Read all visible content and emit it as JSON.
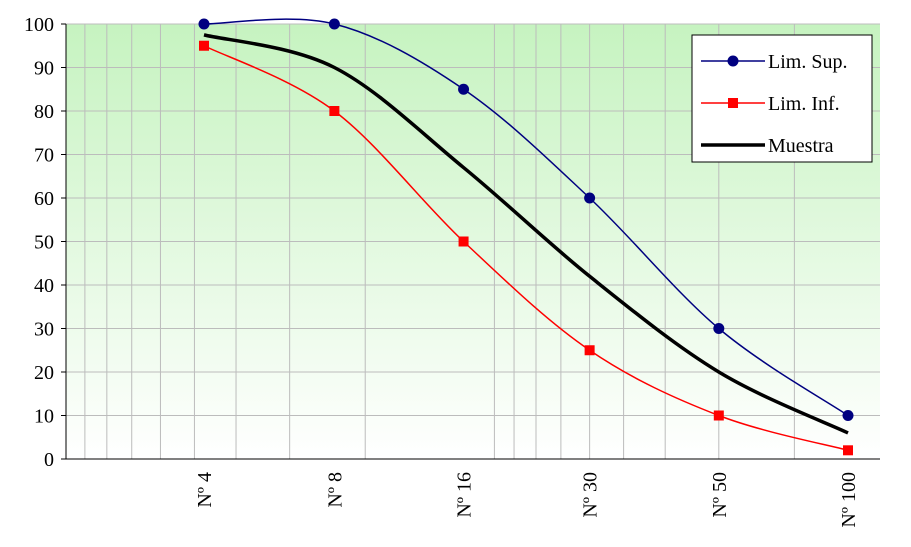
{
  "chart_data": {
    "type": "line",
    "title": "",
    "xlabel": "",
    "ylabel": "",
    "ylim": [
      0,
      100
    ],
    "yticks": [
      0,
      10,
      20,
      30,
      40,
      50,
      60,
      70,
      80,
      90,
      100
    ],
    "x_axis_scale": "log",
    "categories": [
      "Nº 4",
      "Nº 8",
      "Nº 16",
      "Nº 30",
      "Nº 50",
      "Nº 100"
    ],
    "grid": true,
    "legend_position": "top-right",
    "series": [
      {
        "name": "Lim. Sup.",
        "color": "#000080",
        "marker": "circle",
        "values": [
          100,
          100,
          85,
          60,
          30,
          10
        ]
      },
      {
        "name": "Lim. Inf.",
        "color": "#ff0000",
        "marker": "square",
        "values": [
          95,
          80,
          50,
          25,
          10,
          2
        ]
      },
      {
        "name": "Muestra",
        "color": "#000000",
        "marker": "none",
        "values": [
          97.5,
          90,
          67,
          42,
          20,
          6
        ]
      }
    ]
  }
}
